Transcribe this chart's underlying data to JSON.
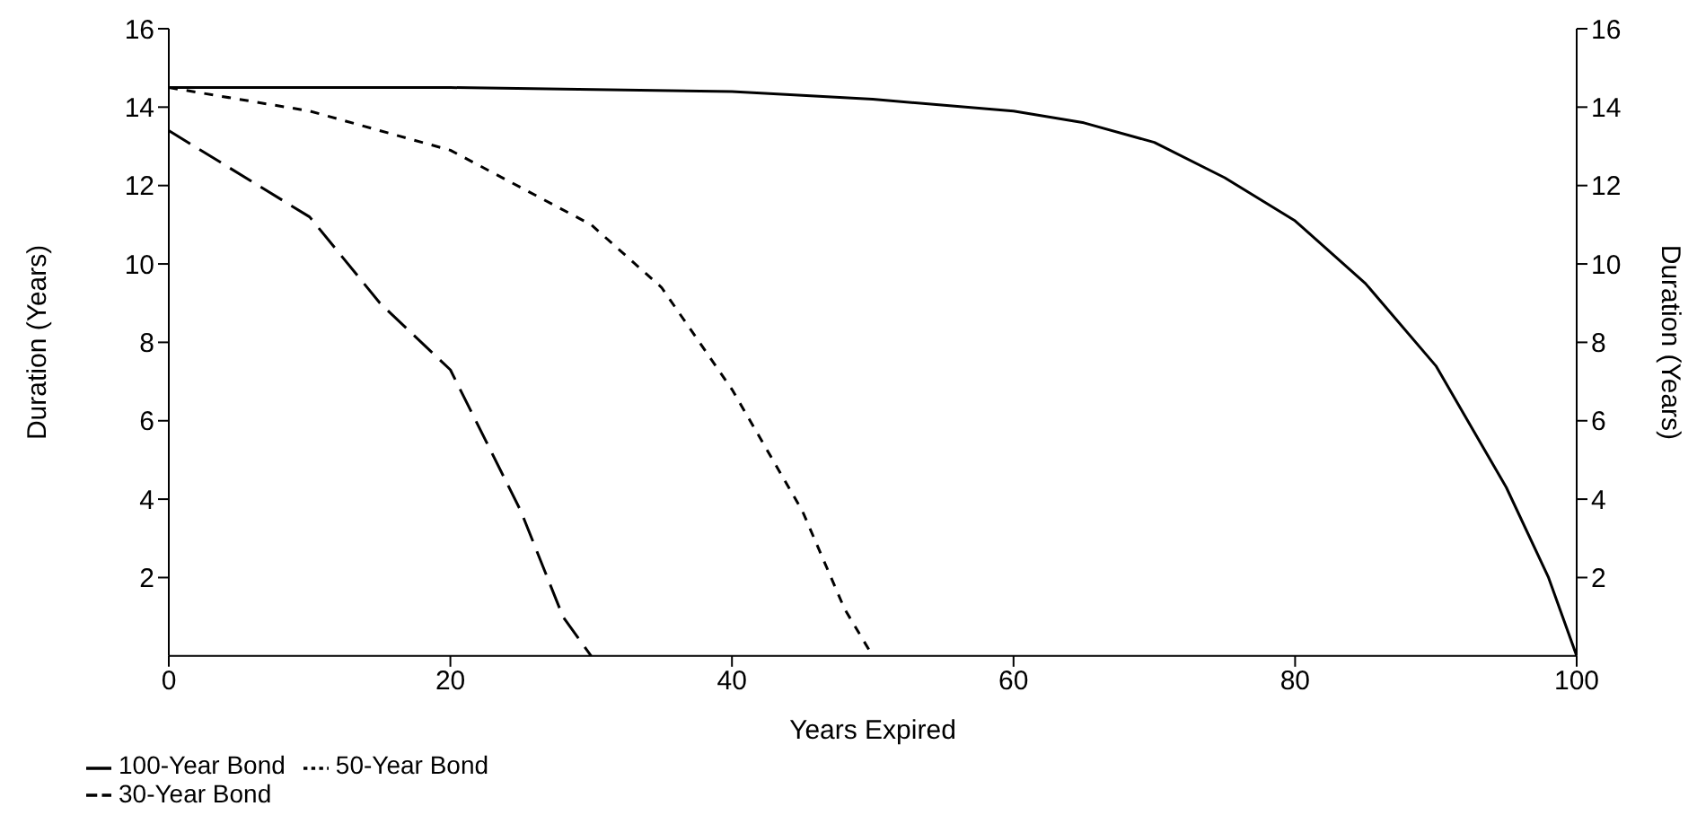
{
  "chart_data": {
    "type": "line",
    "xlabel": "Years Expired",
    "ylabel": "Duration (Years)",
    "y2label": "Duration (Years)",
    "xlim": [
      0,
      100
    ],
    "xticks": [
      0,
      20,
      40,
      60,
      80,
      100
    ],
    "ylim": [
      0,
      16
    ],
    "yticks": [
      2,
      4,
      6,
      8,
      10,
      12,
      14,
      16
    ],
    "y2lim": [
      0,
      16
    ],
    "y2ticks": [
      2,
      4,
      6,
      8,
      10,
      12,
      14,
      16
    ],
    "grid": false,
    "legend": "bottom left",
    "marker": "none",
    "series": [
      {
        "name": "100-Year Bond",
        "color": "#000000",
        "line_style": "solid",
        "x": [
          0,
          20,
          40,
          50,
          60,
          65,
          70,
          75,
          80,
          85,
          90,
          95,
          98,
          100
        ],
        "values": [
          14.5,
          14.5,
          14.4,
          14.2,
          13.9,
          13.6,
          13.1,
          12.2,
          11.1,
          9.5,
          7.4,
          4.3,
          2,
          0
        ]
      },
      {
        "name": "50-Year Bond",
        "color": "#000000",
        "line_style": "dashed",
        "x": [
          0,
          10,
          20,
          30,
          35,
          40,
          45,
          48,
          50
        ],
        "values": [
          14.5,
          13.9,
          12.9,
          11,
          9.4,
          6.8,
          3.7,
          1.2,
          0
        ]
      },
      {
        "name": "30-Year Bond",
        "color": "#000000",
        "line_style": "dashed",
        "x": [
          0,
          10,
          15,
          20,
          25,
          28,
          30
        ],
        "values": [
          13.4,
          11.2,
          9,
          7.3,
          3.7,
          1,
          0
        ]
      }
    ]
  }
}
